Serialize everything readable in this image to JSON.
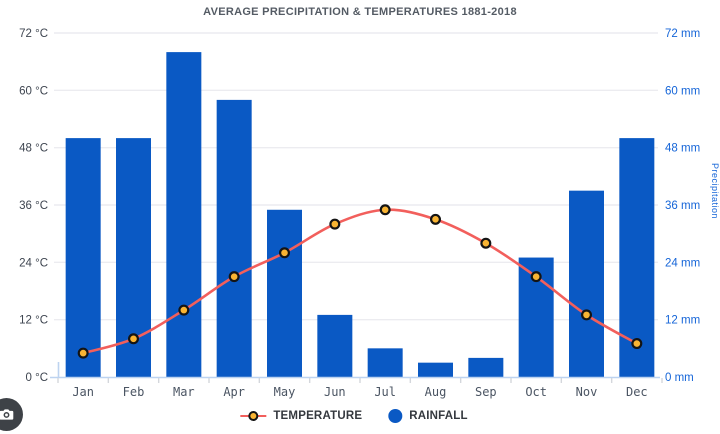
{
  "title": "AVERAGE PRECIPITATION & TEMPERATURES 1881-2018",
  "legend": {
    "temperature": "TEMPERATURE",
    "rainfall": "RAINFALL"
  },
  "right_axis_rotated_label": "Precipitation",
  "colors": {
    "bar_blue": "#0a59c4",
    "line_red": "#f25f5c",
    "marker_yellow": "#f8b433",
    "marker_outline": "#141414",
    "grid": "#ececf0",
    "axis_line": "#bdd3f0",
    "boundary_tick": "#d4d7dc",
    "left_tick_text": "#3e4550",
    "right_tick_text": "#1565d8"
  },
  "chart_data": {
    "type": "bar",
    "subtype": "bar+line combo",
    "title": "AVERAGE PRECIPITATION & TEMPERATURES 1881-2018",
    "categories": [
      "Jan",
      "Feb",
      "Mar",
      "Apr",
      "May",
      "Jun",
      "Jul",
      "Aug",
      "Sep",
      "Oct",
      "Nov",
      "Dec"
    ],
    "series": [
      {
        "name": "TEMPERATURE",
        "type": "line",
        "axis": "left",
        "unit": "°C",
        "color": "#f25f5c",
        "marker_fill": "#f8b433",
        "values": [
          5,
          8,
          14,
          21,
          26,
          32,
          35,
          33,
          28,
          21,
          13,
          7
        ]
      },
      {
        "name": "RAINFALL",
        "type": "bar",
        "axis": "right",
        "unit": "mm",
        "color": "#0a59c4",
        "values": [
          50,
          50,
          68,
          58,
          35,
          13,
          6,
          3,
          4,
          25,
          39,
          50
        ]
      }
    ],
    "y_left": {
      "tick_values": [
        72,
        60,
        48,
        36,
        24,
        12,
        0
      ],
      "suffix": " °C",
      "min": 0,
      "max": 72
    },
    "y_right": {
      "tick_values": [
        72,
        60,
        48,
        36,
        24,
        12,
        0
      ],
      "suffix": " mm",
      "min": 0,
      "max": 72
    },
    "grid": "horizontal",
    "legend_position": "bottom"
  }
}
